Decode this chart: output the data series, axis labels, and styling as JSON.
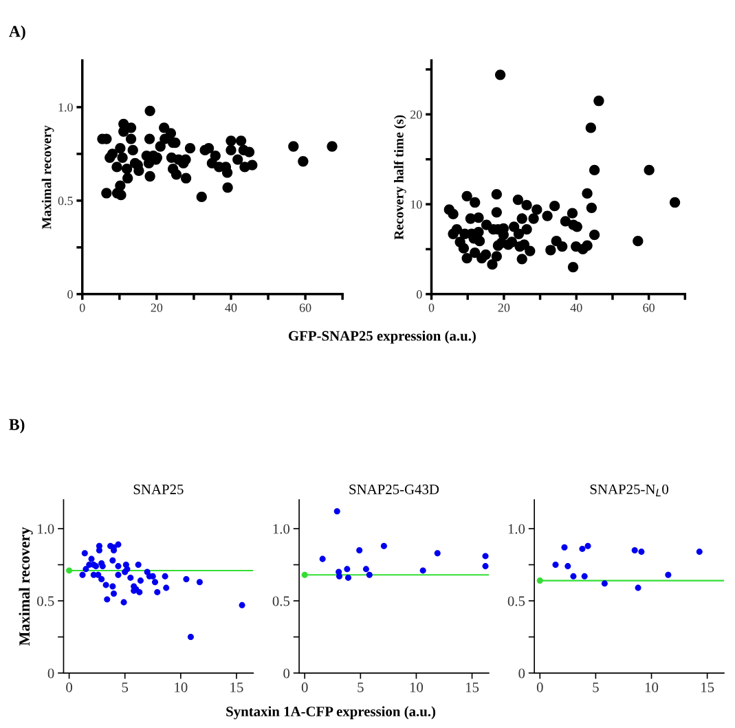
{
  "chart_data": [
    {
      "type": "scatter",
      "xlabel": "GFP-SNAP25 expression (a.u.)",
      "ylabel": "Maximal recovery",
      "annotations": [
        "A)"
      ],
      "marker": "circle",
      "grid": false,
      "xlim": [
        0,
        70
      ],
      "xticks": [
        0,
        {
          "value": 10,
          "label": null
        },
        20,
        {
          "value": 30,
          "label": null
        },
        40,
        {
          "value": 50,
          "label": null
        },
        60,
        {
          "value": 70,
          "label": null
        }
      ],
      "ylim": [
        0,
        1.25
      ],
      "yticks": [
        0,
        {
          "value": 0.25,
          "label": null
        },
        {
          "value": 0.5,
          "label": "0.5"
        },
        {
          "value": 0.75,
          "label": null
        },
        {
          "value": 1.0,
          "label": "1.0"
        }
      ],
      "series": [
        {
          "color": "#000000",
          "x": [
            5.4,
            6.5,
            6.5,
            7.4,
            8.1,
            9.3,
            10.2,
            9.4,
            10.4,
            10.2,
            11.1,
            11.1,
            13.1,
            13.1,
            10.8,
            12.0,
            12.2,
            13.6,
            14.2,
            15.2,
            14.9,
            18.2,
            18.1,
            18.2,
            17.3,
            19.1,
            17.9,
            19.8,
            20.1,
            21,
            22,
            22.2,
            23.8,
            24.4,
            25,
            24,
            24.4,
            25.3,
            25.9,
            27.2,
            27.8,
            27.9,
            29,
            32.1,
            33,
            34,
            35.8,
            34.9,
            36.8,
            38.6,
            39,
            39.1,
            40,
            40,
            41.8,
            42.7,
            43.4,
            44.9,
            43.7,
            45.7,
            56.8,
            59.4,
            67.2
          ],
          "values": [
            0.83,
            0.83,
            0.54,
            0.73,
            0.75,
            0.68,
            0.78,
            0.54,
            0.53,
            0.58,
            0.91,
            0.87,
            0.89,
            0.83,
            0.73,
            0.67,
            0.62,
            0.77,
            0.7,
            0.66,
            0.69,
            0.98,
            0.83,
            0.63,
            0.74,
            0.74,
            0.7,
            0.72,
            0.73,
            0.79,
            0.89,
            0.83,
            0.86,
            0.81,
            0.81,
            0.73,
            0.67,
            0.64,
            0.72,
            0.7,
            0.72,
            0.62,
            0.78,
            0.52,
            0.77,
            0.78,
            0.74,
            0.7,
            0.68,
            0.68,
            0.65,
            0.57,
            0.82,
            0.77,
            0.72,
            0.82,
            0.77,
            0.76,
            0.68,
            0.69,
            0.79,
            0.71,
            0.79
          ]
        }
      ]
    },
    {
      "type": "scatter",
      "ylabel": "Recovery half time (s)",
      "marker": "circle",
      "grid": false,
      "xlim": [
        0,
        70
      ],
      "xticks": [
        0,
        {
          "value": 10,
          "label": null
        },
        20,
        {
          "value": 30,
          "label": null
        },
        40,
        {
          "value": 50,
          "label": null
        },
        60,
        {
          "value": 70,
          "label": null
        }
      ],
      "ylim": [
        0,
        26
      ],
      "yticks": [
        0,
        {
          "value": 5,
          "label": null
        },
        10,
        {
          "value": 15,
          "label": null
        },
        20,
        {
          "value": 25,
          "label": null
        }
      ],
      "series": [
        {
          "color": "#000000",
          "x": [
            4.9,
            6.0,
            6.0,
            7.0,
            7.9,
            8.9,
            9.8,
            9.8,
            9.2,
            10.8,
            11.1,
            12.0,
            11.7,
            12.0,
            13.0,
            13.0,
            13.3,
            13.9,
            15,
            15.2,
            16.8,
            18.0,
            18.0,
            17.1,
            18.0,
            18.4,
            18.4,
            19.9,
            19.9,
            19.3,
            21.2,
            22.2,
            22.8,
            23.9,
            24.1,
            25,
            25,
            24.4,
            26.3,
            26.3,
            25.6,
            27.2,
            28.2,
            29.1,
            32,
            32.9,
            34,
            34.5,
            36.1,
            37,
            38.9,
            39.2,
            40.2,
            39.1,
            39.9,
            41.8,
            43,
            43,
            44,
            44.2,
            45,
            45,
            46.2,
            19,
            57,
            60.1,
            67.2
          ],
          "values": [
            9.4,
            8.9,
            6.7,
            7.2,
            5.8,
            5.1,
            10.9,
            4.0,
            6.7,
            8.4,
            6.7,
            10.2,
            6.2,
            4.6,
            8.5,
            6.9,
            5.9,
            4.0,
            4.4,
            7.7,
            3.3,
            11.1,
            9.1,
            7.2,
            4.2,
            7.2,
            5.4,
            7.3,
            6.6,
            5.7,
            5.5,
            5.8,
            7.5,
            10.5,
            6.7,
            8.4,
            3.9,
            5.3,
            9.9,
            7.2,
            5.5,
            4.8,
            8.4,
            9.4,
            8.7,
            4.9,
            9.8,
            5.9,
            5.3,
            8.1,
            9.0,
            7.7,
            7.5,
            3.0,
            5.3,
            5.0,
            5.4,
            11.2,
            18.5,
            9.6,
            13.8,
            6.6,
            21.5,
            24.4,
            5.9,
            13.8,
            10.2
          ]
        }
      ]
    },
    {
      "type": "scatter",
      "title": "SNAP25",
      "xlabel": "Syntaxin 1A-CFP expression (a.u.)",
      "ylabel": "Maximal recovery",
      "annotations": [
        "B)"
      ],
      "marker": "circle",
      "grid": false,
      "xlim": [
        -0.5,
        16.5
      ],
      "xticks": [
        0,
        5,
        10,
        15
      ],
      "ylim": [
        0,
        1.2
      ],
      "yticks": [
        0,
        {
          "value": 0.25,
          "label": null
        },
        {
          "value": 0.5,
          "label": "0.5"
        },
        {
          "value": 0.75,
          "label": null
        },
        {
          "value": 1.0,
          "label": "1.0"
        }
      ],
      "series": [
        {
          "color": "#0000ee",
          "x": [
            1.2,
            1.4,
            1.5,
            1.8,
            2.0,
            2.2,
            2.2,
            2.4,
            2.7,
            2.7,
            2.6,
            2.9,
            3.0,
            2.9,
            3.3,
            3.4,
            3.7,
            4.0,
            4.0,
            3.9,
            3.9,
            4.0,
            4.4,
            4.4,
            4.4,
            4.9,
            5.1,
            5.2,
            5.0,
            5.5,
            5.8,
            5.8,
            6.0,
            6.2,
            6.3,
            6.4,
            7.0,
            7.2,
            7.5,
            7.7,
            7.9,
            8.6,
            8.7,
            10.5,
            11.7,
            10.9,
            15.5
          ],
          "values": [
            0.68,
            0.83,
            0.72,
            0.75,
            0.79,
            0.75,
            0.68,
            0.74,
            0.88,
            0.85,
            0.68,
            0.76,
            0.74,
            0.65,
            0.61,
            0.51,
            0.88,
            0.85,
            0.87,
            0.78,
            0.6,
            0.55,
            0.89,
            0.74,
            0.68,
            0.49,
            0.75,
            0.72,
            0.7,
            0.66,
            0.6,
            0.57,
            0.58,
            0.75,
            0.56,
            0.64,
            0.7,
            0.67,
            0.67,
            0.63,
            0.56,
            0.67,
            0.59,
            0.65,
            0.63,
            0.25,
            0.47
          ]
        },
        {
          "type": "line",
          "color": "#33dd33",
          "marker": "none",
          "x": [
            0,
            16.5
          ],
          "values": [
            0.71,
            0.71
          ]
        },
        {
          "color": "#33dd33",
          "x": [
            0
          ],
          "values": [
            0.71
          ]
        }
      ]
    },
    {
      "type": "scatter",
      "title": "SNAP25-G43D",
      "marker": "circle",
      "grid": false,
      "xlim": [
        -0.5,
        16.5
      ],
      "xticks": [
        0,
        5,
        10,
        15
      ],
      "ylim": [
        0,
        1.2
      ],
      "yticks": [
        0,
        {
          "value": 0.25,
          "label": null
        },
        {
          "value": 0.5,
          "label": "0.5"
        },
        {
          "value": 0.75,
          "label": null
        },
        {
          "value": 1.0,
          "label": "1.0"
        }
      ],
      "series": [
        {
          "color": "#0000ee",
          "x": [
            1.6,
            2.9,
            3.05,
            3.1,
            3.8,
            3.9,
            4.9,
            5.5,
            5.8,
            7.1,
            10.6,
            11.9,
            16.2,
            16.2
          ],
          "values": [
            0.79,
            1.12,
            0.7,
            0.67,
            0.72,
            0.66,
            0.85,
            0.72,
            0.68,
            0.88,
            0.71,
            0.83,
            0.81,
            0.74
          ]
        },
        {
          "type": "line",
          "color": "#33dd33",
          "marker": "none",
          "x": [
            0,
            16.5
          ],
          "values": [
            0.68,
            0.68
          ]
        },
        {
          "color": "#33dd33",
          "x": [
            0
          ],
          "values": [
            0.68
          ]
        }
      ]
    },
    {
      "type": "scatter",
      "title": "SNAP25-N$_{L}$0",
      "marker": "circle",
      "grid": false,
      "xlim": [
        -0.5,
        16.5
      ],
      "xticks": [
        0,
        5,
        10,
        15
      ],
      "ylim": [
        0,
        1.2
      ],
      "yticks": [
        0,
        {
          "value": 0.25,
          "label": null
        },
        {
          "value": 0.5,
          "label": "0.5"
        },
        {
          "value": 0.75,
          "label": null
        },
        {
          "value": 1.0,
          "label": "1.0"
        }
      ],
      "series": [
        {
          "color": "#0000ee",
          "x": [
            1.4,
            2.2,
            2.5,
            3.0,
            3.8,
            4.3,
            4.0,
            5.8,
            8.5,
            9.1,
            8.8,
            11.5,
            14.3
          ],
          "values": [
            0.75,
            0.87,
            0.74,
            0.67,
            0.86,
            0.88,
            0.67,
            0.62,
            0.85,
            0.84,
            0.59,
            0.68,
            0.84
          ]
        },
        {
          "type": "line",
          "color": "#33dd33",
          "marker": "none",
          "x": [
            0,
            16.5
          ],
          "values": [
            0.64,
            0.64
          ]
        },
        {
          "color": "#33dd33",
          "x": [
            0
          ],
          "values": [
            0.64
          ]
        }
      ]
    }
  ]
}
